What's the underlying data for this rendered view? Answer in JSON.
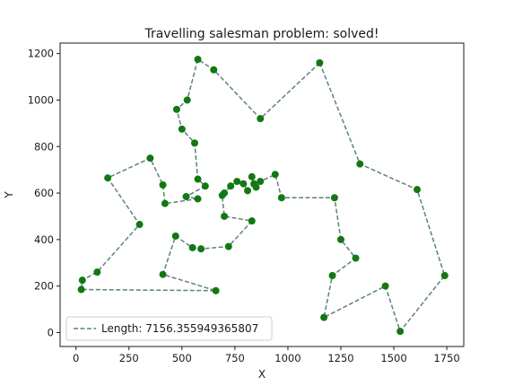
{
  "chart_data": {
    "type": "line",
    "title": "Travelling salesman problem: solved!",
    "xlabel": "X",
    "ylabel": "Y",
    "xlim": [
      -75,
      1830
    ],
    "ylim": [
      -60,
      1245
    ],
    "x_ticks": [
      0,
      250,
      500,
      750,
      1000,
      1250,
      1500,
      1750
    ],
    "y_ticks": [
      0,
      200,
      400,
      600,
      800,
      1000,
      1200
    ],
    "grid": false,
    "legend_position": "lower-left",
    "colors": {
      "route": "#5f7f7f",
      "points": "#127812",
      "frame": "#1a1a1a"
    },
    "series": [
      {
        "name": "Length: 7156.355949365807",
        "style": "dashed",
        "closed": true,
        "x": [
          1150,
          870,
          650,
          575,
          525,
          475,
          500,
          560,
          575,
          610,
          520,
          575,
          420,
          410,
          350,
          150,
          300,
          100,
          30,
          25,
          660,
          410,
          470,
          550,
          590,
          720,
          830,
          700,
          690,
          700,
          730,
          760,
          790,
          810,
          840,
          830,
          850,
          870,
          940,
          970,
          1220,
          1250,
          1320,
          1210,
          1170,
          1460,
          1530,
          1740,
          1610,
          1340
        ],
        "y": [
          1160,
          920,
          1130,
          1175,
          1000,
          960,
          875,
          815,
          660,
          630,
          585,
          575,
          555,
          635,
          750,
          665,
          465,
          260,
          225,
          185,
          180,
          250,
          415,
          365,
          360,
          370,
          480,
          500,
          590,
          600,
          630,
          650,
          640,
          610,
          640,
          670,
          625,
          650,
          680,
          580,
          580,
          400,
          320,
          245,
          65,
          200,
          5,
          245,
          615,
          725
        ]
      }
    ],
    "legend_entries": [
      "Length: 7156.355949365807"
    ]
  }
}
